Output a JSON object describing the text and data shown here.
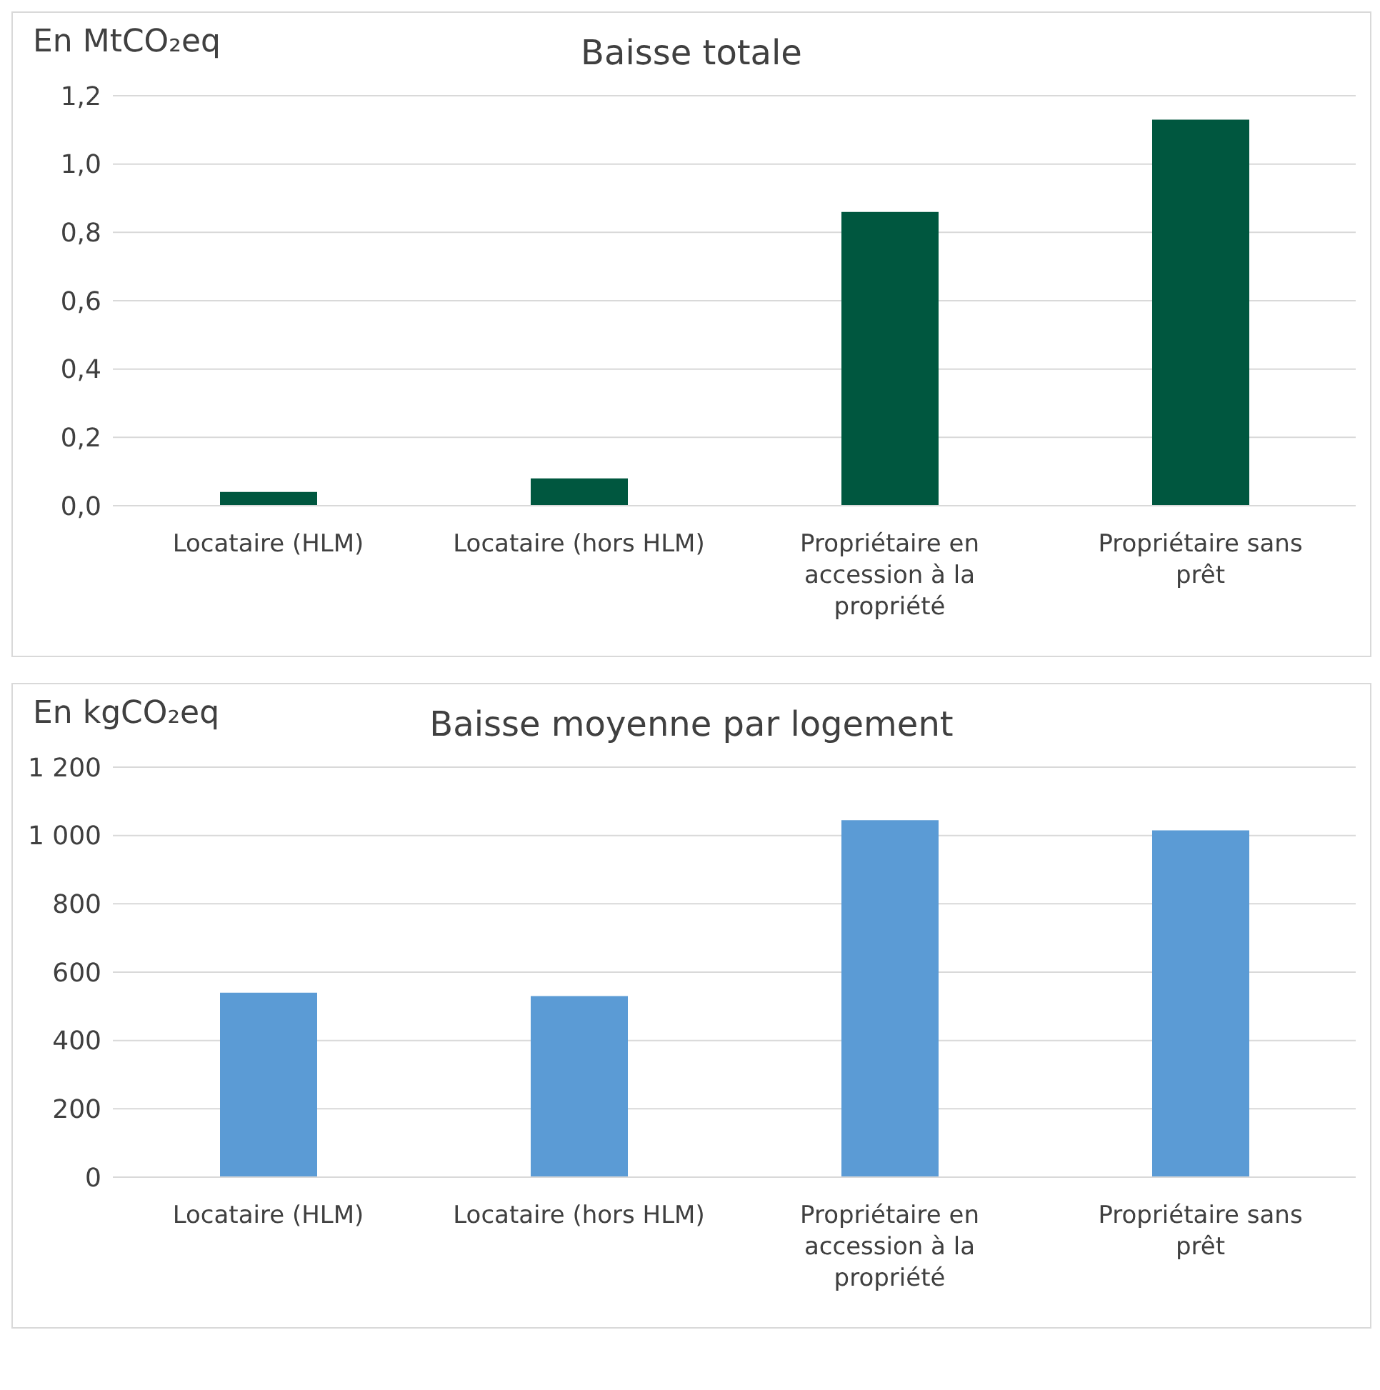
{
  "chart_data": [
    {
      "type": "bar",
      "title": "Baisse totale",
      "ylabel": "En MtCO₂eq",
      "categories": [
        "Locataire (HLM)",
        "Locataire (hors HLM)",
        "Propriétaire en accession à la propriété",
        "Propriétaire sans prêt"
      ],
      "values": [
        0.04,
        0.08,
        0.86,
        1.13
      ],
      "color": "#00573f",
      "ylim": [
        0,
        1.2
      ],
      "yticks": [
        {
          "value": 0,
          "label": "0,0"
        },
        {
          "value": 0.2,
          "label": "0,2"
        },
        {
          "value": 0.4,
          "label": "0,4"
        },
        {
          "value": 0.6,
          "label": "0,6"
        },
        {
          "value": 0.8,
          "label": "0,8"
        },
        {
          "value": 1,
          "label": "1,0"
        },
        {
          "value": 1.2,
          "label": "1,2"
        }
      ],
      "grid": "y"
    },
    {
      "type": "bar",
      "title": "Baisse moyenne par logement",
      "ylabel": "En kgCO₂eq",
      "categories": [
        "Locataire (HLM)",
        "Locataire (hors HLM)",
        "Propriétaire en accession à la propriété",
        "Propriétaire sans prêt"
      ],
      "values": [
        540,
        530,
        1045,
        1015
      ],
      "color": "#5b9bd5",
      "ylim": [
        0,
        1200
      ],
      "yticks": [
        0,
        200,
        400,
        600,
        800,
        {
          "value": 1000,
          "label": "1 000"
        },
        {
          "value": 1200,
          "label": "1 200"
        }
      ],
      "grid": "y"
    }
  ]
}
